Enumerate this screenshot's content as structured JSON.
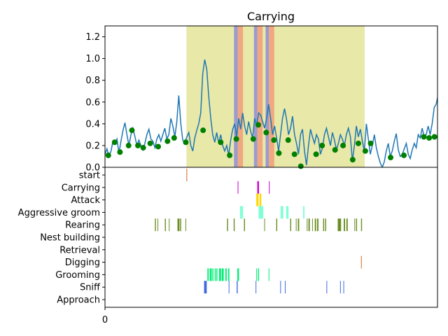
{
  "chart_data": [
    {
      "type": "line",
      "title": "Carrying",
      "xlabel": "",
      "ylabel": "",
      "ylim": [
        0,
        1.3
      ],
      "xlim": [
        0,
        1000
      ],
      "yticks": [
        "0.0",
        "0.2",
        "0.4",
        "0.6",
        "0.8",
        "1.0",
        "1.2"
      ],
      "ytick_values": [
        0,
        0.2,
        0.4,
        0.6,
        0.8,
        1.0,
        1.2
      ],
      "grid": false,
      "line_color": "#1f77b4",
      "marker_color": "#008000",
      "shaded_spans": [
        {
          "x0": 245,
          "x1": 781,
          "color": "#e8e8a8"
        },
        {
          "x0": 388,
          "x1": 399,
          "color": "#9b9bd0"
        },
        {
          "x0": 399,
          "x1": 415,
          "color": "#f0a880"
        },
        {
          "x0": 448,
          "x1": 458,
          "color": "#9b9bd0"
        },
        {
          "x0": 458,
          "x1": 474,
          "color": "#f0a880"
        },
        {
          "x0": 483,
          "x1": 493,
          "color": "#9b9bd0"
        },
        {
          "x0": 493,
          "x1": 509,
          "color": "#f0a880"
        }
      ],
      "line_points": [
        [
          0,
          0.12
        ],
        [
          6,
          0.17
        ],
        [
          12,
          0.1
        ],
        [
          18,
          0.15
        ],
        [
          24,
          0.24
        ],
        [
          30,
          0.22
        ],
        [
          36,
          0.26
        ],
        [
          42,
          0.13
        ],
        [
          48,
          0.24
        ],
        [
          54,
          0.34
        ],
        [
          60,
          0.41
        ],
        [
          66,
          0.3
        ],
        [
          72,
          0.2
        ],
        [
          78,
          0.3
        ],
        [
          84,
          0.36
        ],
        [
          90,
          0.28
        ],
        [
          96,
          0.2
        ],
        [
          102,
          0.25
        ],
        [
          108,
          0.2
        ],
        [
          114,
          0.16
        ],
        [
          120,
          0.22
        ],
        [
          126,
          0.3
        ],
        [
          132,
          0.35
        ],
        [
          138,
          0.26
        ],
        [
          144,
          0.24
        ],
        [
          150,
          0.18
        ],
        [
          156,
          0.26
        ],
        [
          162,
          0.3
        ],
        [
          168,
          0.24
        ],
        [
          174,
          0.3
        ],
        [
          180,
          0.36
        ],
        [
          186,
          0.26
        ],
        [
          192,
          0.3
        ],
        [
          198,
          0.45
        ],
        [
          204,
          0.38
        ],
        [
          210,
          0.28
        ],
        [
          216,
          0.42
        ],
        [
          222,
          0.66
        ],
        [
          228,
          0.4
        ],
        [
          234,
          0.25
        ],
        [
          240,
          0.23
        ],
        [
          246,
          0.28
        ],
        [
          252,
          0.32
        ],
        [
          258,
          0.2
        ],
        [
          264,
          0.15
        ],
        [
          270,
          0.27
        ],
        [
          276,
          0.34
        ],
        [
          282,
          0.4
        ],
        [
          288,
          0.5
        ],
        [
          294,
          0.86
        ],
        [
          300,
          0.99
        ],
        [
          306,
          0.9
        ],
        [
          312,
          0.65
        ],
        [
          318,
          0.45
        ],
        [
          324,
          0.3
        ],
        [
          330,
          0.23
        ],
        [
          336,
          0.32
        ],
        [
          342,
          0.22
        ],
        [
          348,
          0.3
        ],
        [
          354,
          0.2
        ],
        [
          360,
          0.15
        ],
        [
          366,
          0.2
        ],
        [
          372,
          0.11
        ],
        [
          378,
          0.25
        ],
        [
          384,
          0.35
        ],
        [
          390,
          0.4
        ],
        [
          396,
          0.28
        ],
        [
          402,
          0.45
        ],
        [
          408,
          0.35
        ],
        [
          414,
          0.5
        ],
        [
          420,
          0.38
        ],
        [
          426,
          0.3
        ],
        [
          432,
          0.42
        ],
        [
          438,
          0.33
        ],
        [
          444,
          0.27
        ],
        [
          450,
          0.45
        ],
        [
          456,
          0.38
        ],
        [
          462,
          0.5
        ],
        [
          468,
          0.48
        ],
        [
          474,
          0.42
        ],
        [
          480,
          0.36
        ],
        [
          486,
          0.45
        ],
        [
          492,
          0.58
        ],
        [
          498,
          0.45
        ],
        [
          504,
          0.3
        ],
        [
          510,
          0.38
        ],
        [
          516,
          0.27
        ],
        [
          522,
          0.15
        ],
        [
          528,
          0.3
        ],
        [
          534,
          0.45
        ],
        [
          540,
          0.54
        ],
        [
          546,
          0.44
        ],
        [
          552,
          0.3
        ],
        [
          558,
          0.36
        ],
        [
          564,
          0.47
        ],
        [
          570,
          0.3
        ],
        [
          576,
          0.22
        ],
        [
          582,
          0.12
        ],
        [
          588,
          0.3
        ],
        [
          594,
          0.35
        ],
        [
          600,
          0.15
        ],
        [
          606,
          0.02
        ],
        [
          612,
          0.2
        ],
        [
          618,
          0.35
        ],
        [
          624,
          0.28
        ],
        [
          630,
          0.22
        ],
        [
          636,
          0.3
        ],
        [
          642,
          0.26
        ],
        [
          648,
          0.12
        ],
        [
          654,
          0.18
        ],
        [
          660,
          0.3
        ],
        [
          666,
          0.36
        ],
        [
          672,
          0.28
        ],
        [
          678,
          0.2
        ],
        [
          684,
          0.32
        ],
        [
          690,
          0.25
        ],
        [
          696,
          0.16
        ],
        [
          702,
          0.22
        ],
        [
          708,
          0.3
        ],
        [
          714,
          0.26
        ],
        [
          720,
          0.2
        ],
        [
          726,
          0.3
        ],
        [
          732,
          0.36
        ],
        [
          738,
          0.28
        ],
        [
          744,
          0.06
        ],
        [
          750,
          0.2
        ],
        [
          756,
          0.38
        ],
        [
          762,
          0.28
        ],
        [
          768,
          0.35
        ],
        [
          774,
          0.24
        ],
        [
          780,
          0.15
        ],
        [
          786,
          0.4
        ],
        [
          792,
          0.26
        ],
        [
          798,
          0.12
        ],
        [
          804,
          0.2
        ],
        [
          810,
          0.3
        ],
        [
          816,
          0.18
        ],
        [
          822,
          0.1
        ],
        [
          828,
          0.04
        ],
        [
          834,
          0.0
        ],
        [
          840,
          0.05
        ],
        [
          846,
          0.15
        ],
        [
          852,
          0.22
        ],
        [
          858,
          0.1
        ],
        [
          864,
          0.15
        ],
        [
          870,
          0.24
        ],
        [
          876,
          0.31
        ],
        [
          882,
          0.16
        ],
        [
          888,
          0.1
        ],
        [
          894,
          0.12
        ],
        [
          900,
          0.17
        ],
        [
          906,
          0.22
        ],
        [
          912,
          0.12
        ],
        [
          918,
          0.08
        ],
        [
          924,
          0.16
        ],
        [
          930,
          0.22
        ],
        [
          936,
          0.18
        ],
        [
          942,
          0.3
        ],
        [
          948,
          0.27
        ],
        [
          954,
          0.36
        ],
        [
          960,
          0.28
        ],
        [
          966,
          0.3
        ],
        [
          972,
          0.38
        ],
        [
          978,
          0.3
        ],
        [
          984,
          0.4
        ],
        [
          990,
          0.55
        ],
        [
          996,
          0.58
        ],
        [
          1000,
          0.64
        ]
      ],
      "marker_points": [
        [
          10,
          0.11
        ],
        [
          29,
          0.23
        ],
        [
          45,
          0.14
        ],
        [
          71,
          0.2
        ],
        [
          81,
          0.34
        ],
        [
          99,
          0.2
        ],
        [
          115,
          0.18
        ],
        [
          136,
          0.22
        ],
        [
          160,
          0.19
        ],
        [
          188,
          0.24
        ],
        [
          208,
          0.27
        ],
        [
          243,
          0.23
        ],
        [
          295,
          0.34
        ],
        [
          348,
          0.23
        ],
        [
          375,
          0.11
        ],
        [
          395,
          0.26
        ],
        [
          446,
          0.26
        ],
        [
          461,
          0.39
        ],
        [
          485,
          0.32
        ],
        [
          508,
          0.25
        ],
        [
          523,
          0.13
        ],
        [
          551,
          0.25
        ],
        [
          570,
          0.12
        ],
        [
          589,
          0.01
        ],
        [
          635,
          0.12
        ],
        [
          653,
          0.2
        ],
        [
          692,
          0.16
        ],
        [
          716,
          0.2
        ],
        [
          745,
          0.07
        ],
        [
          762,
          0.22
        ],
        [
          783,
          0.15
        ],
        [
          799,
          0.22
        ],
        [
          859,
          0.09
        ],
        [
          899,
          0.11
        ],
        [
          959,
          0.28
        ],
        [
          975,
          0.27
        ],
        [
          991,
          0.28
        ]
      ]
    },
    {
      "type": "event_raster",
      "xlabel": "",
      "xticks": [
        "0"
      ],
      "xtick_values": [
        0
      ],
      "xlim": [
        0,
        1000
      ],
      "categories": [
        "start",
        "Carrying",
        "Attack",
        "Aggressive groom",
        "Rearing",
        "Nest building",
        "Retrieval",
        "Digging",
        "Grooming",
        "Sniff",
        "Approach"
      ],
      "series": [
        {
          "name": "start",
          "color": "#d2691e",
          "events": [
            [
              245,
              247
            ]
          ]
        },
        {
          "name": "Carrying",
          "color": "#cc00cc",
          "events": [
            [
              399,
              400
            ],
            [
              458,
              463
            ],
            [
              493,
              494
            ]
          ]
        },
        {
          "name": "Attack",
          "color": "#ffd700",
          "events": [
            [
              455,
              462
            ],
            [
              465,
              470
            ]
          ]
        },
        {
          "name": "Aggressive groom",
          "color": "#7fffd4",
          "events": [
            [
              406,
              415
            ],
            [
              462,
              476
            ],
            [
              528,
              536
            ],
            [
              545,
              552
            ],
            [
              596,
              600
            ]
          ]
        },
        {
          "name": "Rearing",
          "color": "#6b8e23",
          "events": [
            [
              150,
              153
            ],
            [
              158,
              160
            ],
            [
              180,
              183
            ],
            [
              192,
              194
            ],
            [
              218,
              224
            ],
            [
              226,
              229
            ],
            [
              242,
              244
            ],
            [
              367,
              370
            ],
            [
              387,
              390
            ],
            [
              418,
              421
            ],
            [
              479,
              481
            ],
            [
              515,
              518
            ],
            [
              557,
              560
            ],
            [
              574,
              576
            ],
            [
              580,
              584
            ],
            [
              607,
              609
            ],
            [
              612,
              616
            ],
            [
              623,
              625
            ],
            [
              631,
              635
            ],
            [
              638,
              642
            ],
            [
              656,
              659
            ],
            [
              662,
              665
            ],
            [
              700,
              710
            ],
            [
              718,
              722
            ],
            [
              726,
              730
            ],
            [
              750,
              752
            ],
            [
              755,
              758
            ],
            [
              770,
              773
            ]
          ]
        },
        {
          "name": "Nest building",
          "color": "#8b4513",
          "events": []
        },
        {
          "name": "Retrieval",
          "color": "#1e90ff",
          "events": []
        },
        {
          "name": "Digging",
          "color": "#d2691e",
          "events": [
            [
              770,
              772
            ]
          ]
        },
        {
          "name": "Grooming",
          "color": "#00ee76",
          "events": [
            [
              308,
              312
            ],
            [
              315,
              321
            ],
            [
              323,
              326
            ],
            [
              330,
              333
            ],
            [
              335,
              338
            ],
            [
              343,
              349
            ],
            [
              351,
              357
            ],
            [
              362,
              366
            ],
            [
              370,
              374
            ],
            [
              398,
              403
            ],
            [
              455,
              457
            ],
            [
              460,
              463
            ],
            [
              492,
              494
            ]
          ]
        },
        {
          "name": "Sniff",
          "color": "#4169e1",
          "events": [
            [
              298,
              306
            ],
            [
              372,
              374
            ],
            [
              396,
              399
            ],
            [
              453,
              455
            ],
            [
              527,
              529
            ],
            [
              541,
              543
            ],
            [
              666,
              668
            ],
            [
              707,
              709
            ],
            [
              717,
              719
            ]
          ]
        },
        {
          "name": "Approach",
          "color": "#4169e1",
          "events": []
        }
      ]
    }
  ]
}
